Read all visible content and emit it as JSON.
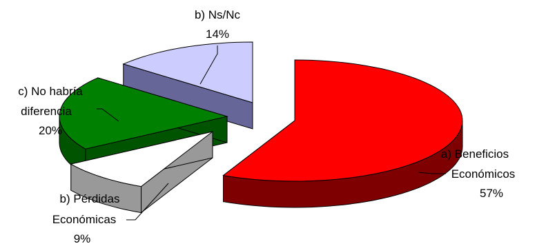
{
  "chart_data": {
    "type": "pie",
    "title": "",
    "slices": [
      {
        "label_lines": [
          "a) Beneficios",
          "Económicos"
        ],
        "percent_label": "57%",
        "value": 57,
        "color": "#ff0000"
      },
      {
        "label_lines": [
          "b) Pérdidas",
          "Económicas"
        ],
        "percent_label": "9%",
        "value": 9,
        "color": "#ffffff"
      },
      {
        "label_lines": [
          "c) No habría",
          "diferencia"
        ],
        "percent_label": "20%",
        "value": 20,
        "color": "#008000"
      },
      {
        "label_lines": [
          "b) Ns/Nc"
        ],
        "percent_label": "14%",
        "value": 14,
        "color": "#ccccff"
      }
    ],
    "exploded": true,
    "three_d": true,
    "legend": "none"
  }
}
